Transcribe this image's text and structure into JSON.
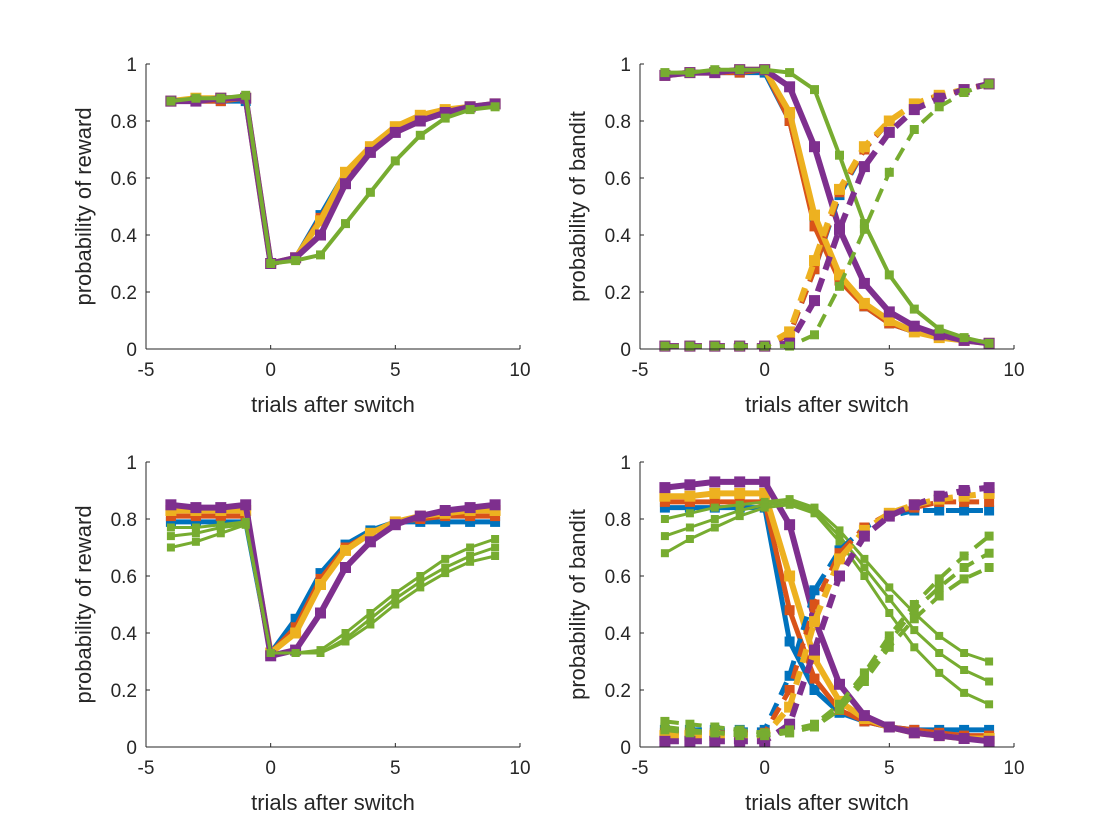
{
  "colors": {
    "blue": "#0072BD",
    "orange": "#D95319",
    "yellow": "#EDB120",
    "purple": "#7E2F8E",
    "green": "#77AC30",
    "axis": "#262626"
  },
  "chart_data": [
    {
      "type": "line",
      "xlabel": "trials after switch",
      "ylabel": "probability of reward",
      "xlim": [
        -5,
        10
      ],
      "ylim": [
        0,
        1
      ],
      "xticks": [
        -5,
        0,
        5,
        10
      ],
      "yticks": [
        0,
        0.2,
        0.4,
        0.6,
        0.8,
        1
      ],
      "x": [
        -4,
        -3,
        -2,
        -1,
        0,
        1,
        2,
        3,
        4,
        5,
        6,
        7,
        8,
        9
      ],
      "series": [
        {
          "color": "blue",
          "style": "solid",
          "width": 5,
          "values": [
            0.87,
            0.87,
            0.87,
            0.87,
            0.3,
            0.32,
            0.47,
            0.62,
            0.7,
            0.78,
            0.81,
            0.84,
            0.85,
            0.86
          ]
        },
        {
          "color": "orange",
          "style": "solid",
          "width": 5,
          "values": [
            0.87,
            0.87,
            0.87,
            0.88,
            0.3,
            0.32,
            0.46,
            0.61,
            0.7,
            0.77,
            0.81,
            0.84,
            0.85,
            0.86
          ]
        },
        {
          "color": "yellow",
          "style": "solid",
          "width": 6,
          "values": [
            0.87,
            0.88,
            0.88,
            0.88,
            0.3,
            0.32,
            0.45,
            0.62,
            0.71,
            0.78,
            0.82,
            0.84,
            0.85,
            0.86
          ]
        },
        {
          "color": "purple",
          "style": "solid",
          "width": 6,
          "values": [
            0.87,
            0.87,
            0.88,
            0.88,
            0.3,
            0.32,
            0.4,
            0.58,
            0.69,
            0.76,
            0.8,
            0.83,
            0.85,
            0.86
          ]
        },
        {
          "color": "green",
          "style": "solid",
          "width": 4,
          "values": [
            0.87,
            0.88,
            0.88,
            0.89,
            0.3,
            0.31,
            0.33,
            0.44,
            0.55,
            0.66,
            0.75,
            0.81,
            0.84,
            0.85
          ]
        }
      ]
    },
    {
      "type": "line",
      "xlabel": "trials after switch",
      "ylabel": "probability of bandit",
      "xlim": [
        -5,
        10
      ],
      "ylim": [
        0,
        1
      ],
      "xticks": [
        -5,
        0,
        5,
        10
      ],
      "yticks": [
        0,
        0.2,
        0.4,
        0.6,
        0.8,
        1
      ],
      "x": [
        -4,
        -3,
        -2,
        -1,
        0,
        1,
        2,
        3,
        4,
        5,
        6,
        7,
        8,
        9
      ],
      "series": [
        {
          "color": "blue",
          "style": "solid",
          "width": 5,
          "values": [
            0.96,
            0.97,
            0.97,
            0.97,
            0.97,
            0.8,
            0.44,
            0.25,
            0.15,
            0.09,
            0.06,
            0.04,
            0.03,
            0.02
          ]
        },
        {
          "color": "orange",
          "style": "solid",
          "width": 5,
          "values": [
            0.96,
            0.97,
            0.97,
            0.97,
            0.98,
            0.8,
            0.43,
            0.24,
            0.15,
            0.09,
            0.06,
            0.04,
            0.03,
            0.02
          ]
        },
        {
          "color": "yellow",
          "style": "solid",
          "width": 6,
          "values": [
            0.96,
            0.97,
            0.97,
            0.98,
            0.98,
            0.83,
            0.47,
            0.26,
            0.16,
            0.1,
            0.06,
            0.04,
            0.03,
            0.02
          ]
        },
        {
          "color": "purple",
          "style": "solid",
          "width": 6,
          "values": [
            0.96,
            0.97,
            0.97,
            0.98,
            0.98,
            0.92,
            0.71,
            0.42,
            0.23,
            0.13,
            0.08,
            0.05,
            0.03,
            0.02
          ]
        },
        {
          "color": "green",
          "style": "solid",
          "width": 4,
          "values": [
            0.97,
            0.97,
            0.98,
            0.98,
            0.98,
            0.97,
            0.91,
            0.68,
            0.44,
            0.26,
            0.14,
            0.07,
            0.04,
            0.02
          ]
        },
        {
          "color": "blue",
          "style": "dashed",
          "width": 5,
          "values": [
            0.01,
            0.01,
            0.01,
            0.01,
            0.01,
            0.05,
            0.28,
            0.54,
            0.7,
            0.8,
            0.86,
            0.89,
            0.91,
            0.93
          ]
        },
        {
          "color": "orange",
          "style": "dashed",
          "width": 5,
          "values": [
            0.01,
            0.01,
            0.01,
            0.01,
            0.01,
            0.05,
            0.28,
            0.55,
            0.7,
            0.8,
            0.86,
            0.89,
            0.91,
            0.93
          ]
        },
        {
          "color": "yellow",
          "style": "dashed",
          "width": 6,
          "values": [
            0.01,
            0.01,
            0.01,
            0.01,
            0.01,
            0.06,
            0.31,
            0.56,
            0.71,
            0.8,
            0.86,
            0.89,
            0.91,
            0.93
          ]
        },
        {
          "color": "purple",
          "style": "dashed",
          "width": 6,
          "values": [
            0.01,
            0.01,
            0.01,
            0.01,
            0.01,
            0.02,
            0.17,
            0.42,
            0.64,
            0.76,
            0.84,
            0.88,
            0.91,
            0.93
          ]
        },
        {
          "color": "green",
          "style": "dashed",
          "width": 4,
          "values": [
            0.01,
            0.01,
            0.01,
            0.01,
            0.01,
            0.01,
            0.05,
            0.22,
            0.42,
            0.62,
            0.77,
            0.85,
            0.9,
            0.93
          ]
        }
      ]
    },
    {
      "type": "line",
      "xlabel": "trials after switch",
      "ylabel": "probability of reward",
      "xlim": [
        -5,
        10
      ],
      "ylim": [
        0,
        1
      ],
      "xticks": [
        -5,
        0,
        5,
        10
      ],
      "yticks": [
        0,
        0.2,
        0.4,
        0.6,
        0.8,
        1
      ],
      "x": [
        -4,
        -3,
        -2,
        -1,
        0,
        1,
        2,
        3,
        4,
        5,
        6,
        7,
        8,
        9
      ],
      "series": [
        {
          "color": "blue",
          "style": "solid",
          "width": 5,
          "values": [
            0.79,
            0.79,
            0.79,
            0.79,
            0.33,
            0.45,
            0.61,
            0.71,
            0.76,
            0.79,
            0.79,
            0.79,
            0.79,
            0.79
          ]
        },
        {
          "color": "orange",
          "style": "solid",
          "width": 5,
          "values": [
            0.81,
            0.81,
            0.81,
            0.81,
            0.33,
            0.42,
            0.59,
            0.7,
            0.75,
            0.79,
            0.8,
            0.81,
            0.81,
            0.81
          ]
        },
        {
          "color": "yellow",
          "style": "solid",
          "width": 6,
          "values": [
            0.83,
            0.83,
            0.83,
            0.83,
            0.33,
            0.4,
            0.57,
            0.69,
            0.75,
            0.79,
            0.81,
            0.82,
            0.83,
            0.83
          ]
        },
        {
          "color": "purple",
          "style": "solid",
          "width": 6,
          "values": [
            0.85,
            0.84,
            0.84,
            0.85,
            0.32,
            0.34,
            0.47,
            0.63,
            0.72,
            0.78,
            0.81,
            0.83,
            0.84,
            0.85
          ]
        },
        {
          "color": "green",
          "style": "solid",
          "width": 3,
          "values": [
            0.77,
            0.77,
            0.78,
            0.79,
            0.33,
            0.33,
            0.34,
            0.4,
            0.47,
            0.54,
            0.6,
            0.66,
            0.7,
            0.73
          ]
        },
        {
          "color": "green",
          "style": "solid",
          "width": 3,
          "values": [
            0.74,
            0.75,
            0.77,
            0.78,
            0.33,
            0.33,
            0.33,
            0.38,
            0.45,
            0.52,
            0.58,
            0.63,
            0.67,
            0.7
          ]
        },
        {
          "color": "green",
          "style": "solid",
          "width": 3,
          "values": [
            0.7,
            0.72,
            0.75,
            0.78,
            0.33,
            0.33,
            0.33,
            0.37,
            0.43,
            0.5,
            0.56,
            0.61,
            0.65,
            0.67
          ]
        }
      ]
    },
    {
      "type": "line",
      "xlabel": "trials after switch",
      "ylabel": "probability of bandit",
      "xlim": [
        -5,
        10
      ],
      "ylim": [
        0,
        1
      ],
      "xticks": [
        -5,
        0,
        5,
        10
      ],
      "yticks": [
        0,
        0.2,
        0.4,
        0.6,
        0.8,
        1
      ],
      "x": [
        -4,
        -3,
        -2,
        -1,
        0,
        1,
        2,
        3,
        4,
        5,
        6,
        7,
        8,
        9
      ],
      "series": [
        {
          "color": "blue",
          "style": "solid",
          "width": 5,
          "values": [
            0.84,
            0.84,
            0.84,
            0.84,
            0.84,
            0.37,
            0.2,
            0.12,
            0.09,
            0.07,
            0.06,
            0.06,
            0.06,
            0.06
          ]
        },
        {
          "color": "orange",
          "style": "solid",
          "width": 5,
          "values": [
            0.86,
            0.86,
            0.86,
            0.86,
            0.86,
            0.48,
            0.24,
            0.13,
            0.09,
            0.07,
            0.06,
            0.05,
            0.04,
            0.04
          ]
        },
        {
          "color": "yellow",
          "style": "solid",
          "width": 6,
          "values": [
            0.88,
            0.88,
            0.89,
            0.89,
            0.89,
            0.6,
            0.31,
            0.16,
            0.1,
            0.07,
            0.05,
            0.04,
            0.03,
            0.03
          ]
        },
        {
          "color": "purple",
          "style": "solid",
          "width": 6,
          "values": [
            0.91,
            0.92,
            0.93,
            0.93,
            0.93,
            0.78,
            0.45,
            0.22,
            0.11,
            0.07,
            0.05,
            0.04,
            0.03,
            0.02
          ]
        },
        {
          "color": "green",
          "style": "solid",
          "width": 3,
          "values": [
            0.8,
            0.82,
            0.84,
            0.85,
            0.86,
            0.87,
            0.84,
            0.76,
            0.66,
            0.56,
            0.47,
            0.39,
            0.33,
            0.3
          ]
        },
        {
          "color": "green",
          "style": "solid",
          "width": 3,
          "values": [
            0.74,
            0.77,
            0.8,
            0.83,
            0.85,
            0.86,
            0.83,
            0.74,
            0.63,
            0.52,
            0.41,
            0.33,
            0.27,
            0.23
          ]
        },
        {
          "color": "green",
          "style": "solid",
          "width": 3,
          "values": [
            0.68,
            0.73,
            0.77,
            0.81,
            0.84,
            0.85,
            0.82,
            0.72,
            0.6,
            0.47,
            0.35,
            0.26,
            0.19,
            0.15
          ]
        },
        {
          "color": "blue",
          "style": "dashed",
          "width": 5,
          "values": [
            0.06,
            0.06,
            0.06,
            0.06,
            0.06,
            0.25,
            0.55,
            0.69,
            0.77,
            0.81,
            0.83,
            0.83,
            0.83,
            0.83
          ]
        },
        {
          "color": "orange",
          "style": "dashed",
          "width": 5,
          "values": [
            0.05,
            0.05,
            0.05,
            0.05,
            0.05,
            0.2,
            0.5,
            0.68,
            0.77,
            0.82,
            0.84,
            0.86,
            0.86,
            0.86
          ]
        },
        {
          "color": "yellow",
          "style": "dashed",
          "width": 6,
          "values": [
            0.04,
            0.04,
            0.04,
            0.04,
            0.04,
            0.14,
            0.44,
            0.66,
            0.76,
            0.82,
            0.85,
            0.87,
            0.88,
            0.89
          ]
        },
        {
          "color": "purple",
          "style": "dashed",
          "width": 6,
          "values": [
            0.02,
            0.02,
            0.02,
            0.02,
            0.02,
            0.08,
            0.34,
            0.6,
            0.74,
            0.81,
            0.85,
            0.88,
            0.9,
            0.91
          ]
        },
        {
          "color": "green",
          "style": "dashed",
          "width": 4,
          "values": [
            0.09,
            0.08,
            0.07,
            0.06,
            0.05,
            0.06,
            0.08,
            0.15,
            0.26,
            0.39,
            0.5,
            0.59,
            0.67,
            0.74
          ]
        },
        {
          "color": "green",
          "style": "dashed",
          "width": 4,
          "values": [
            0.07,
            0.06,
            0.05,
            0.05,
            0.04,
            0.05,
            0.07,
            0.14,
            0.25,
            0.37,
            0.48,
            0.56,
            0.63,
            0.68
          ]
        },
        {
          "color": "green",
          "style": "dashed",
          "width": 4,
          "values": [
            0.06,
            0.05,
            0.05,
            0.04,
            0.04,
            0.05,
            0.07,
            0.13,
            0.23,
            0.35,
            0.45,
            0.53,
            0.59,
            0.63
          ]
        }
      ]
    }
  ]
}
